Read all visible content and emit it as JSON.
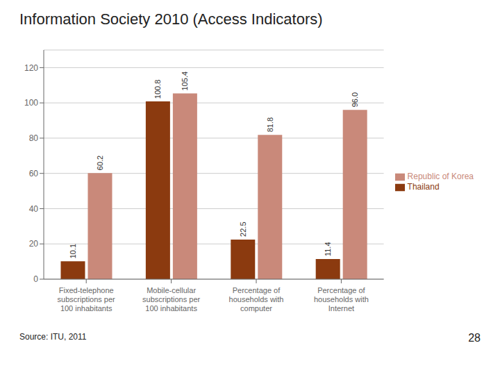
{
  "chart_data": {
    "type": "bar",
    "title": "Information Society 2010 (Access Indicators)",
    "categories": [
      "Fixed-telephone\nsubscriptions per\n100 inhabitants",
      "Mobile-cellular\nsubscriptions per\n100 inhabitants",
      "Percentage of\nhouseholds with\ncomputer",
      "Percentage of\nhouseholds with\nInternet"
    ],
    "series": [
      {
        "name": "Thailand",
        "color": "#8B3A0F",
        "values": [
          10.1,
          100.8,
          22.5,
          11.4
        ],
        "value_labels": [
          "10.1",
          "100.8",
          "22.5",
          "11.4"
        ]
      },
      {
        "name": "Republic of Korea",
        "color": "#C9897A",
        "values": [
          60.2,
          105.4,
          81.8,
          96.0
        ],
        "value_labels": [
          "60.2",
          "105.4",
          "81.8",
          "96.0"
        ]
      }
    ],
    "ylim": [
      0,
      130
    ],
    "yticks": [
      0,
      20,
      40,
      60,
      80,
      100,
      120
    ],
    "grid": true,
    "legend": "right",
    "data_labels": true,
    "annotations": [
      "Source: ITU, 2011",
      "28"
    ]
  }
}
